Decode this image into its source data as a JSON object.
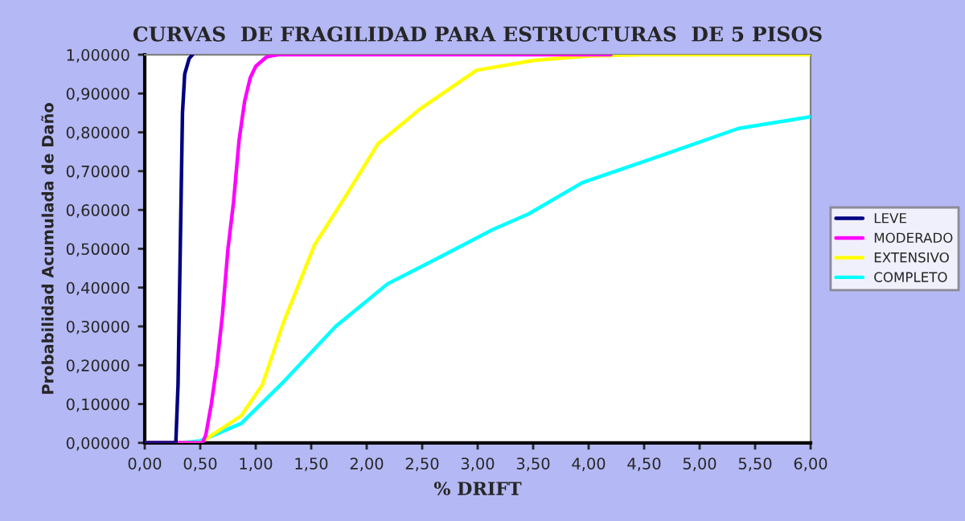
{
  "chart_data": {
    "type": "line",
    "title": "CURVAS  DE FRAGILIDAD PARA ESTRUCTURAS  DE 5 PISOS",
    "xlabel": "% DRIFT",
    "ylabel": "Probabilidad Acumulada de Daño",
    "series": [
      {
        "name": "LEVE",
        "color": "#000080",
        "x": [
          0,
          0.28,
          0.3,
          0.32,
          0.34,
          0.36,
          0.4,
          0.43
        ],
        "values": [
          0,
          0,
          0.15,
          0.5,
          0.85,
          0.95,
          0.99,
          1
        ]
      },
      {
        "name": "MODERADO",
        "color": "#ff00ff",
        "x": [
          0,
          0.52,
          0.55,
          0.6,
          0.65,
          0.7,
          0.75,
          0.8,
          0.85,
          0.9,
          0.95,
          1.0,
          1.1,
          1.2,
          4.2
        ],
        "values": [
          0,
          0,
          0.02,
          0.1,
          0.2,
          0.33,
          0.5,
          0.62,
          0.78,
          0.88,
          0.94,
          0.97,
          0.995,
          1,
          1
        ]
      },
      {
        "name": "EXTENSIVO",
        "color": "#ffff00",
        "x": [
          0,
          0.5,
          0.87,
          1.06,
          1.25,
          1.53,
          1.82,
          2.1,
          2.48,
          2.99,
          3.5,
          4.0,
          4.5,
          6
        ],
        "values": [
          0,
          0,
          0.07,
          0.15,
          0.31,
          0.51,
          0.64,
          0.77,
          0.86,
          0.96,
          0.985,
          0.997,
          1,
          1
        ]
      },
      {
        "name": "COMPLETO",
        "color": "#00ffff",
        "x": [
          0,
          0.31,
          0.5,
          0.87,
          1.26,
          1.72,
          2.19,
          2.67,
          3.14,
          3.46,
          3.94,
          4.65,
          5.35,
          6
        ],
        "values": [
          0,
          0,
          0.005,
          0.05,
          0.16,
          0.3,
          0.41,
          0.48,
          0.55,
          0.59,
          0.67,
          0.74,
          0.81,
          0.84
        ]
      }
    ],
    "xlim": [
      0,
      6
    ],
    "ylim": [
      0,
      1
    ],
    "xticks": [
      {
        "value": 0,
        "label": "0,00"
      },
      {
        "value": 0.5,
        "label": "0,50"
      },
      {
        "value": 1,
        "label": "1,00"
      },
      {
        "value": 1.5,
        "label": "1,50"
      },
      {
        "value": 2,
        "label": "2,00"
      },
      {
        "value": 2.5,
        "label": "2,50"
      },
      {
        "value": 3,
        "label": "3,00"
      },
      {
        "value": 3.5,
        "label": "3,50"
      },
      {
        "value": 4,
        "label": "4,00"
      },
      {
        "value": 4.5,
        "label": "4,50"
      },
      {
        "value": 5,
        "label": "5,00"
      },
      {
        "value": 5.5,
        "label": "5,50"
      },
      {
        "value": 6,
        "label": "6,00"
      }
    ],
    "yticks": [
      {
        "value": 0,
        "label": "0,00000"
      },
      {
        "value": 0.1,
        "label": "0,10000"
      },
      {
        "value": 0.2,
        "label": "0,20000"
      },
      {
        "value": 0.3,
        "label": "0,30000"
      },
      {
        "value": 0.4,
        "label": "0,40000"
      },
      {
        "value": 0.5,
        "label": "0,50000"
      },
      {
        "value": 0.6,
        "label": "0,60000"
      },
      {
        "value": 0.7,
        "label": "0,70000"
      },
      {
        "value": 0.8,
        "label": "0,80000"
      },
      {
        "value": 0.9,
        "label": "0,90000"
      },
      {
        "value": 1,
        "label": "1,00000"
      }
    ],
    "legend": "right",
    "grid": false,
    "marker": "none",
    "line_style": "solid"
  }
}
